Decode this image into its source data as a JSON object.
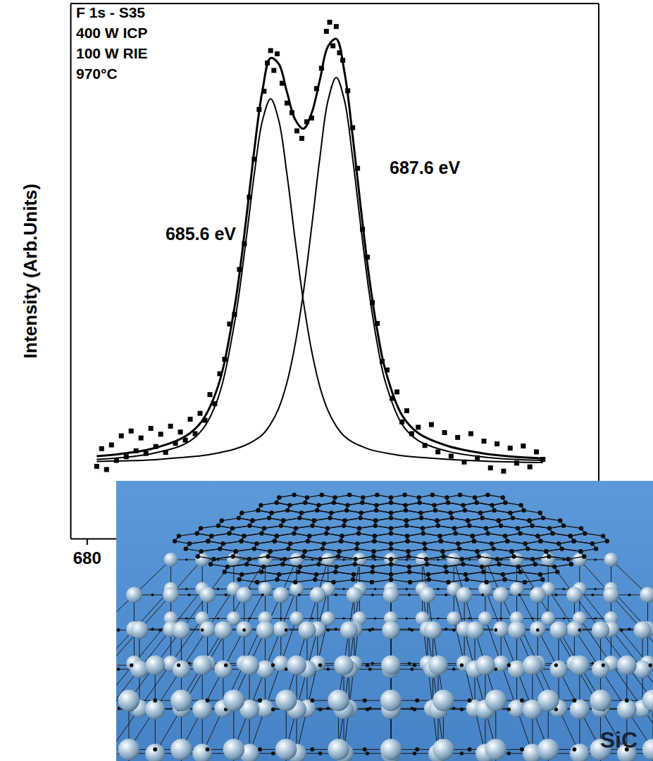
{
  "chart_data": {
    "type": "line",
    "y_label": "Intensity (Arb.Units)",
    "annotations": [
      "F 1s - S35",
      "400 W ICP",
      "100 W RIE",
      "970°C",
      "685.6 eV",
      "687.6 eV",
      "SiC"
    ],
    "xlim": [
      679.5,
      695.6
    ],
    "xticks": [
      680
    ],
    "ylim": [
      0,
      100
    ],
    "tick_labels": "x",
    "grid": false,
    "series": [
      {
        "type": "scatter",
        "marker": "square",
        "color": "#000000",
        "x": [
          680.3,
          680.45,
          680.6,
          680.75,
          680.9,
          681.05,
          681.2,
          681.35,
          681.5,
          681.65,
          681.8,
          681.95,
          682.1,
          682.25,
          682.4,
          682.55,
          682.7,
          682.85,
          683.0,
          683.15,
          683.3,
          683.45,
          683.6,
          683.75,
          683.9,
          684.05,
          684.2,
          684.35,
          684.5,
          684.65,
          684.8,
          684.95,
          685.1,
          685.25,
          685.4,
          685.5,
          685.6,
          685.7,
          685.8,
          685.95,
          686.1,
          686.25,
          686.4,
          686.55,
          686.7,
          686.85,
          687.0,
          687.15,
          687.3,
          687.4,
          687.5,
          687.6,
          687.7,
          687.8,
          687.95,
          688.1,
          688.25,
          688.4,
          688.55,
          688.7,
          688.85,
          689.0,
          689.15,
          689.3,
          689.45,
          689.6,
          689.75,
          689.9,
          690.1,
          690.3,
          690.5,
          690.7,
          690.9,
          691.1,
          691.3,
          691.5,
          691.7,
          691.9,
          692.1,
          692.3,
          692.5,
          692.7,
          692.9,
          693.1,
          693.3,
          693.5,
          693.7,
          693.9
        ],
        "values": [
          13.5,
          16.8,
          12.9,
          17.5,
          14.6,
          19.2,
          15.3,
          20.1,
          16.4,
          18.8,
          15.9,
          20.6,
          17.2,
          19.5,
          16.1,
          21.0,
          17.8,
          19.9,
          18.4,
          22.3,
          19.6,
          23.4,
          22.1,
          26.9,
          25.2,
          30.8,
          33.5,
          40.1,
          41.9,
          50.3,
          55.1,
          63.8,
          70.9,
          80.2,
          83.6,
          88.9,
          91.2,
          87.5,
          90.6,
          85.1,
          81.4,
          79.6,
          76.2,
          74.8,
          77.9,
          78.6,
          84.1,
          87.9,
          94.8,
          96.5,
          92.1,
          95.7,
          90.8,
          89.4,
          83.7,
          76.8,
          69.2,
          57.8,
          52.6,
          44.1,
          40.2,
          33.1,
          31.5,
          26.2,
          27.4,
          21.8,
          23.9,
          19.6,
          20.8,
          17.4,
          21.3,
          16.2,
          19.8,
          15.4,
          18.9,
          14.3,
          19.6,
          15.1,
          18.2,
          13.2,
          17.7,
          12.6,
          16.9,
          14.1,
          17.3,
          13.4,
          16.2,
          14.8
        ]
      },
      {
        "type": "line",
        "line_style": "solid",
        "color": "#000000",
        "x": [
          680.3,
          681,
          682,
          683,
          683.5,
          684,
          684.5,
          684.85,
          685.1,
          685.35,
          685.6,
          685.85,
          686.1,
          686.35,
          686.6,
          686.85,
          687.1,
          687.35,
          687.6,
          687.85,
          688.1,
          688.35,
          688.6,
          688.85,
          689.1,
          689.6,
          690.1,
          691,
          692,
          693,
          693.9
        ],
        "values": [
          14.8,
          15.1,
          15.9,
          17.7,
          20.2,
          26.3,
          40.3,
          55.7,
          68.0,
          78.1,
          82.2,
          78.1,
          68.0,
          55.7,
          44.3,
          35.1,
          28.4,
          23.9,
          21.0,
          19.1,
          18.0,
          17.3,
          16.7,
          16.3,
          16.0,
          15.5,
          15.2,
          14.8,
          14.5,
          14.3,
          14.2
        ]
      },
      {
        "type": "line",
        "line_style": "solid",
        "color": "#000000",
        "x": [
          680.3,
          681,
          682,
          683,
          683.5,
          684,
          684.5,
          684.85,
          685.1,
          685.35,
          685.6,
          685.85,
          686.1,
          686.35,
          686.6,
          686.85,
          687.1,
          687.35,
          687.6,
          687.85,
          688.1,
          688.35,
          688.6,
          688.85,
          689.1,
          689.6,
          690.1,
          691,
          692,
          693,
          693.9
        ],
        "values": [
          14.4,
          14.5,
          14.7,
          15.2,
          15.5,
          16.0,
          16.7,
          17.5,
          18.3,
          19.4,
          21.4,
          24.4,
          29.2,
          36.4,
          46.1,
          58.2,
          71.1,
          81.9,
          86.2,
          81.9,
          71.1,
          58.2,
          46.1,
          36.4,
          29.2,
          21.4,
          18.3,
          16.3,
          15.3,
          14.8,
          14.6
        ]
      },
      {
        "type": "line",
        "line_style": "solid",
        "color": "#000000",
        "x": [
          680.3,
          681,
          682,
          683,
          683.5,
          684,
          684.5,
          684.85,
          685.1,
          685.35,
          685.6,
          685.85,
          686.1,
          686.35,
          686.6,
          686.85,
          687.1,
          687.35,
          687.6,
          687.85,
          688.1,
          688.35,
          688.6,
          688.85,
          689.1,
          689.6,
          690.1,
          691,
          692,
          693,
          693.9
        ],
        "values": [
          15.4,
          15.8,
          16.8,
          19.1,
          21.9,
          28.5,
          43.2,
          59.4,
          72.5,
          83.7,
          89.8,
          88.7,
          83.4,
          78.3,
          76.6,
          79.5,
          85.7,
          92.0,
          93.4,
          87.2,
          75.3,
          61.7,
          49.0,
          38.9,
          31.4,
          23.1,
          19.7,
          17.3,
          16.0,
          15.3,
          15.0
        ]
      }
    ]
  }
}
